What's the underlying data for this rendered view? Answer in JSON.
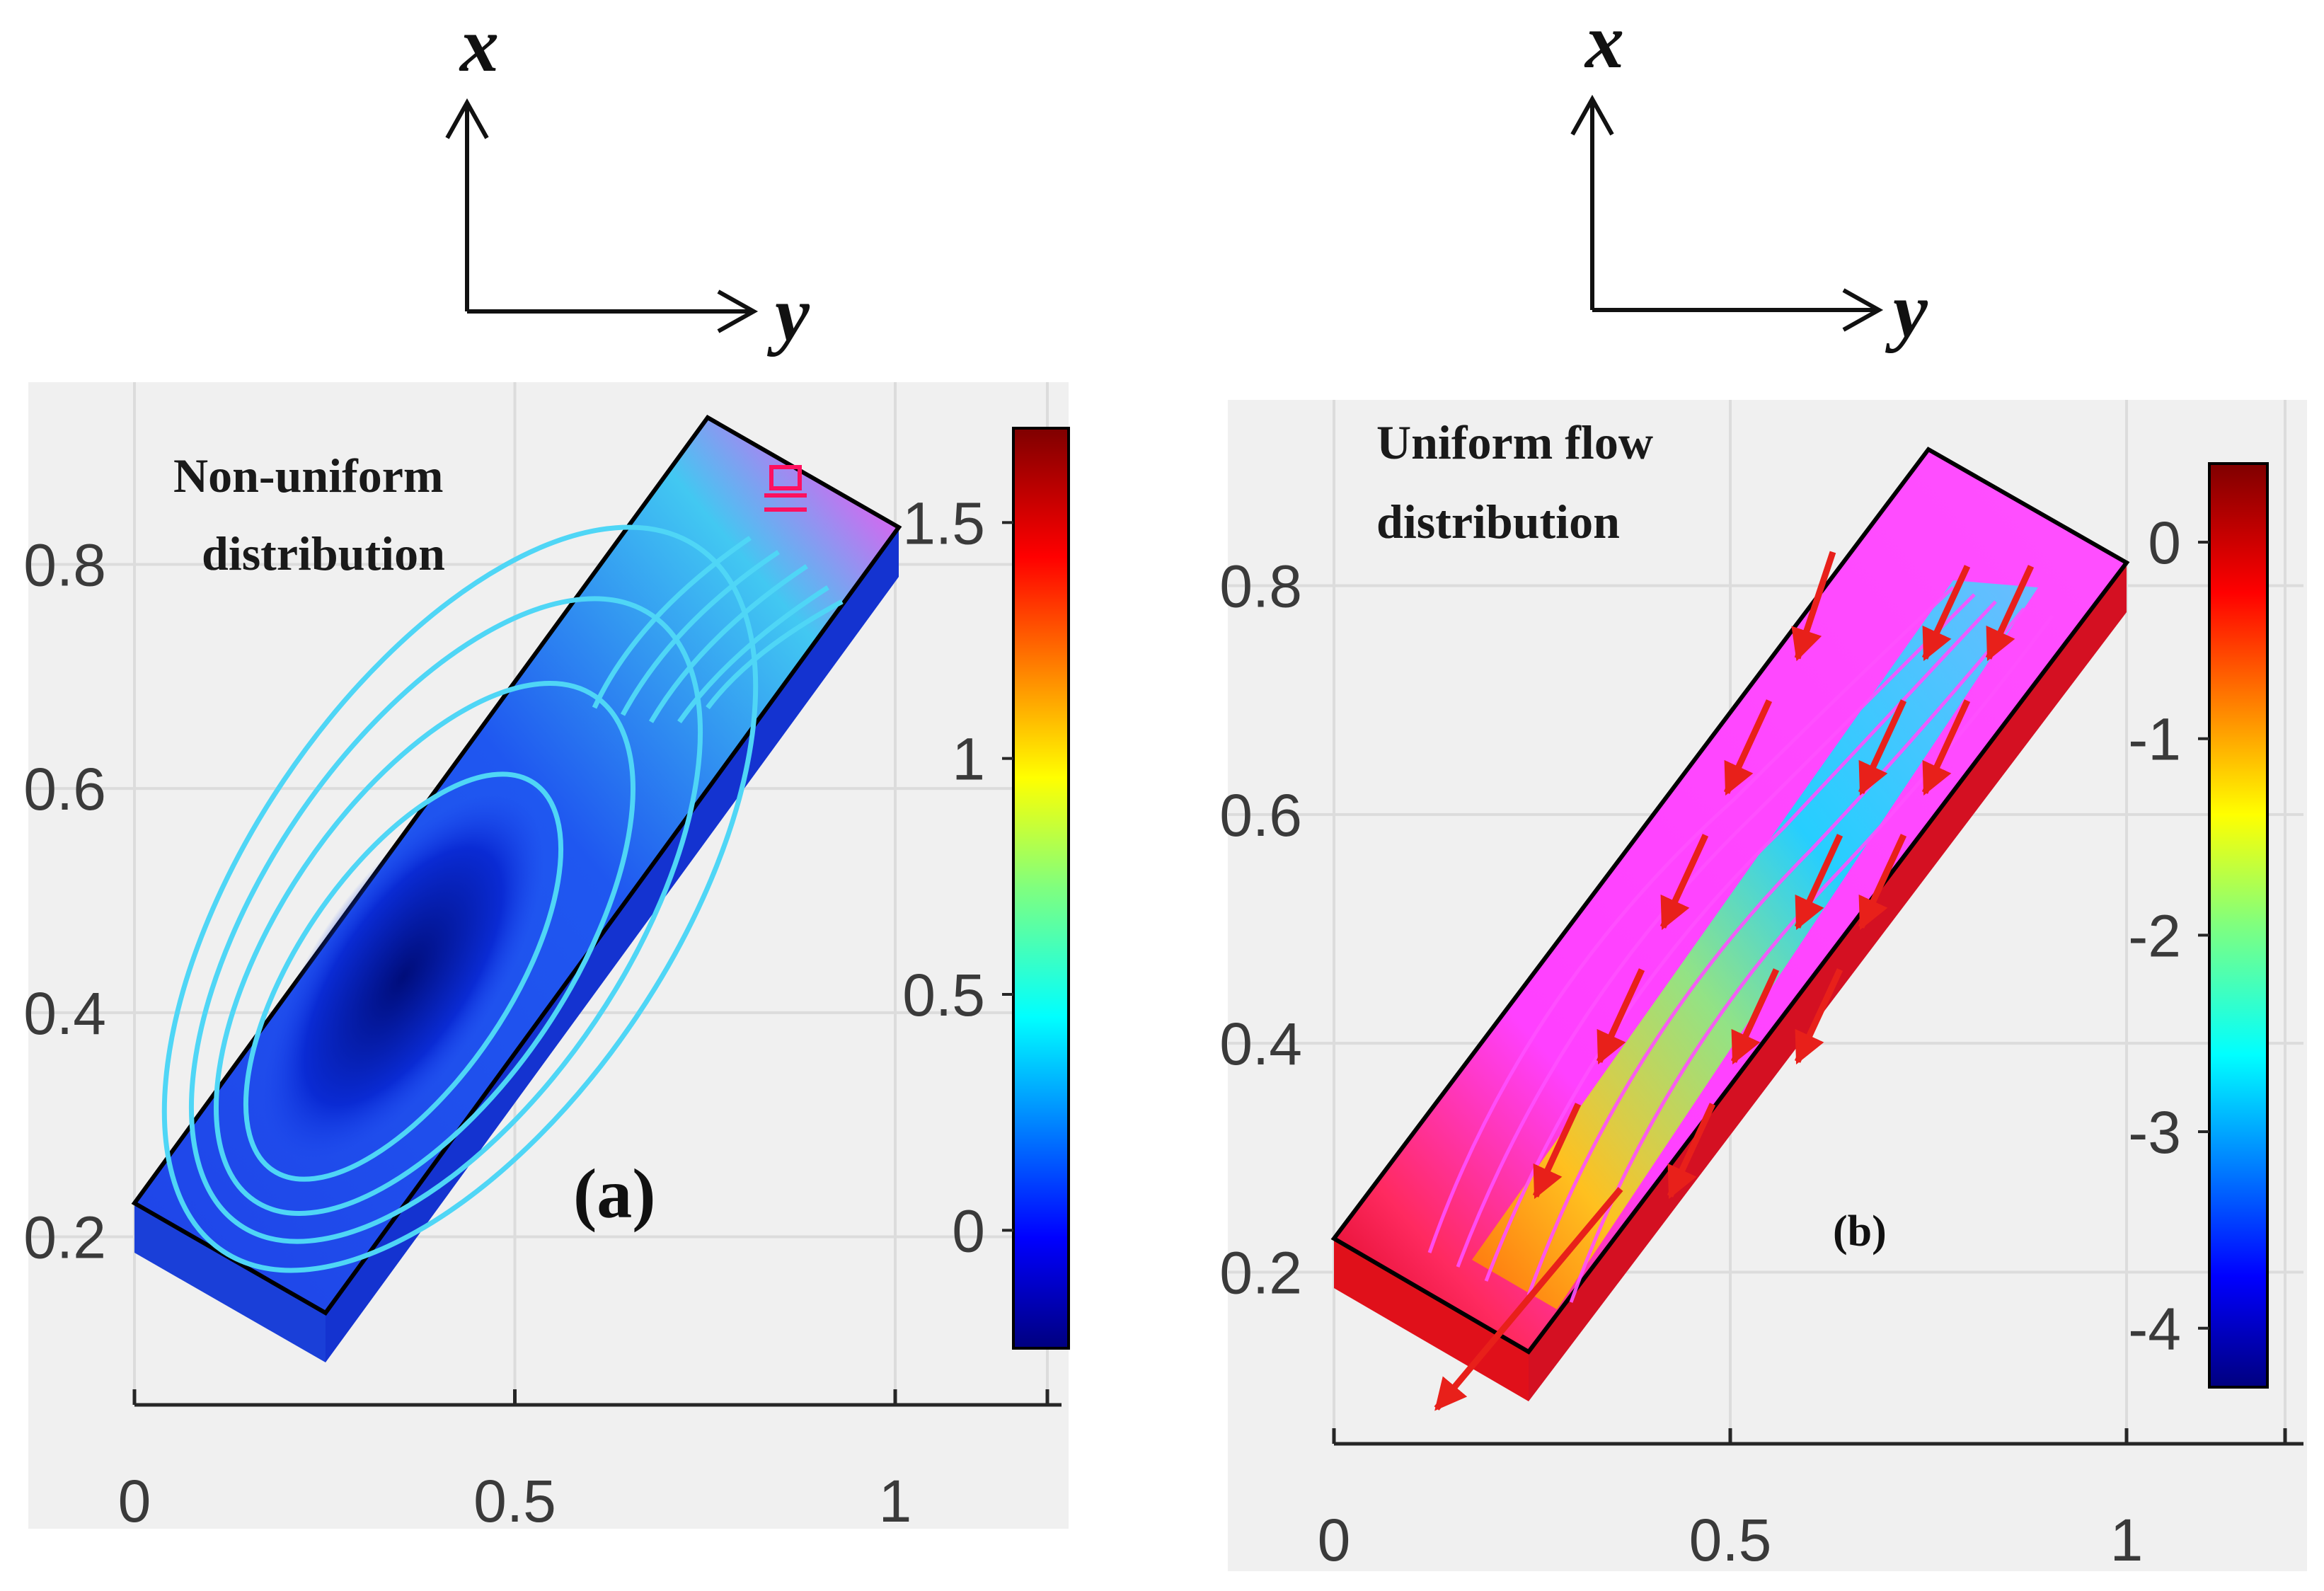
{
  "chart_data": [
    {
      "type": "contour",
      "panel_label": "(a)",
      "annotation": [
        "Non-uniform",
        "distribution"
      ],
      "axis_arrows": {
        "vertical": "x",
        "horizontal": "y"
      },
      "xlim": [
        0,
        1.2
      ],
      "ylim": [
        0.05,
        0.95
      ],
      "xticks": [
        0,
        0.5,
        1
      ],
      "xtick_labels": [
        "0",
        "0.5",
        "1"
      ],
      "yticks": [
        0.2,
        0.4,
        0.6,
        0.8
      ],
      "ytick_labels": [
        "0.2",
        "0.4",
        "0.6",
        "0.8"
      ],
      "colorbar": {
        "range": [
          -0.25,
          1.7
        ],
        "ticks": [
          0,
          0.5,
          1,
          1.5
        ],
        "tick_labels": [
          "0",
          "0.5",
          "1",
          "1.5"
        ]
      },
      "grid": true
    },
    {
      "type": "contour",
      "panel_label": "(b)",
      "annotation": [
        "Uniform flow",
        "distribution"
      ],
      "axis_arrows": {
        "vertical": "x",
        "horizontal": "y"
      },
      "xlim": [
        0,
        1.2
      ],
      "ylim": [
        0.05,
        0.95
      ],
      "xticks": [
        0,
        0.5,
        1
      ],
      "xtick_labels": [
        "0",
        "0.5",
        "1"
      ],
      "yticks": [
        0.2,
        0.4,
        0.6,
        0.8
      ],
      "ytick_labels": [
        "0.2",
        "0.4",
        "0.6",
        "0.8"
      ],
      "colorbar": {
        "range": [
          -4.3,
          0.4
        ],
        "ticks": [
          -4,
          -3,
          -2,
          -1,
          0
        ],
        "tick_labels": [
          "-4",
          "-3",
          "-2",
          "-1",
          "0"
        ]
      },
      "grid": true
    }
  ]
}
